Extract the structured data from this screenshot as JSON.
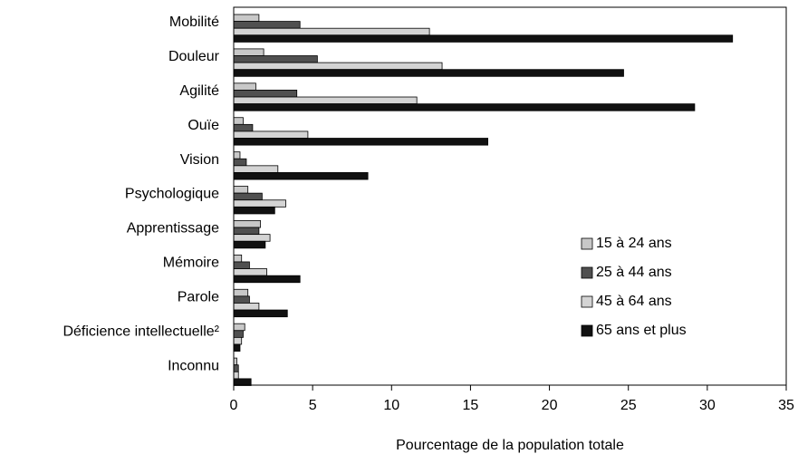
{
  "chart_data": {
    "type": "bar",
    "orientation": "horizontal",
    "title": "",
    "xlabel": "Pourcentage de la population totale",
    "ylabel": "",
    "xlim": [
      0,
      35
    ],
    "xticks": [
      "0",
      "5",
      "10",
      "15",
      "20",
      "25",
      "30",
      "35"
    ],
    "grid": false,
    "legend_position": "lower-right inside plot",
    "categories": [
      "Mobilité",
      "Douleur",
      "Agilité",
      "Ouïe",
      "Vision",
      "Psychologique",
      "Apprentissage",
      "Mémoire",
      "Parole",
      "Déficience intellectuelle²",
      "Inconnu"
    ],
    "series": [
      {
        "name": "15 à 24 ans",
        "color": "#c8c8c8",
        "values": [
          1.6,
          1.9,
          1.4,
          0.6,
          0.4,
          0.9,
          1.7,
          0.5,
          0.9,
          0.7,
          0.2
        ]
      },
      {
        "name": "25 à 44 ans",
        "color": "#505050",
        "values": [
          4.2,
          5.3,
          4.0,
          1.2,
          0.8,
          1.8,
          1.6,
          1.0,
          1.0,
          0.6,
          0.3
        ]
      },
      {
        "name": "45 à 64 ans",
        "color": "#d4d4d4",
        "values": [
          12.4,
          13.2,
          11.6,
          4.7,
          2.8,
          3.3,
          2.3,
          2.1,
          1.6,
          0.5,
          0.3
        ]
      },
      {
        "name": "65 ans et plus",
        "color": "#111111",
        "values": [
          31.6,
          24.7,
          29.2,
          16.1,
          8.5,
          2.6,
          2.0,
          4.2,
          3.4,
          0.4,
          1.1
        ]
      }
    ]
  }
}
